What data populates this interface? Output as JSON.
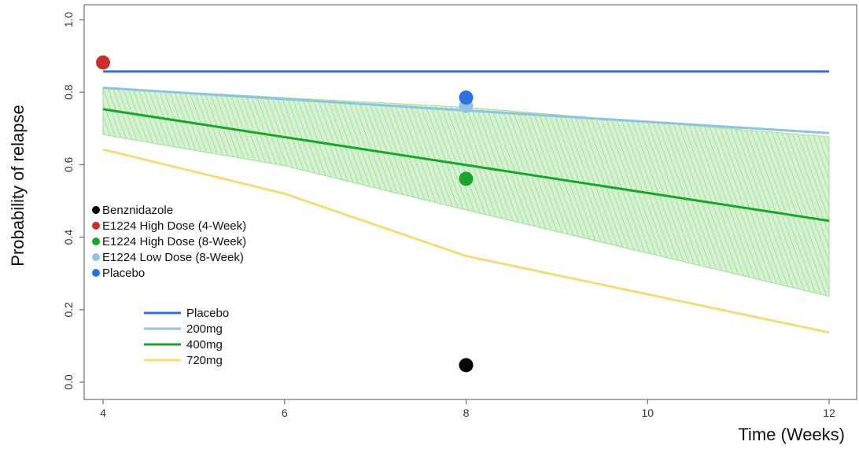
{
  "chart_data": {
    "type": "line",
    "xlabel": "Time (Weeks)",
    "ylabel": "Probability of relapse",
    "xlim": [
      4,
      12
    ],
    "ylim": [
      0,
      1
    ],
    "x_ticks": [
      "4",
      "6",
      "8",
      "10",
      "12"
    ],
    "y_ticks": [
      "0.0",
      "0.2",
      "0.4",
      "0.6",
      "0.8",
      "1.0"
    ],
    "series": [
      {
        "name": "Placebo",
        "color": "#2f6fe0",
        "x": [
          4,
          12
        ],
        "y": [
          0.857,
          0.857
        ]
      },
      {
        "name": "200mg",
        "color": "#8fc3e3",
        "x": [
          4,
          12
        ],
        "y": [
          0.812,
          0.687
        ]
      },
      {
        "name": "400mg",
        "color": "#1aa52b",
        "x": [
          4,
          12
        ],
        "y": [
          0.753,
          0.445
        ]
      },
      {
        "name": "720mg",
        "color": "#f5dc78",
        "x": [
          4,
          6,
          8,
          12
        ],
        "y": [
          0.642,
          0.52,
          0.348,
          0.137
        ]
      }
    ],
    "band": {
      "series": "400mg",
      "color": "#9ee09a",
      "x": [
        4,
        6,
        8,
        12
      ],
      "upper": [
        0.812,
        0.785,
        0.758,
        0.677
      ],
      "lower": [
        0.683,
        0.597,
        0.475,
        0.237
      ]
    },
    "points": [
      {
        "name": "Benznidazole",
        "color": "#000000",
        "x": 8,
        "y": 0.047
      },
      {
        "name": "E1224 High Dose (4-Week)",
        "color": "#c8302c",
        "x": 4,
        "y": 0.882
      },
      {
        "name": "E1224 High Dose (8-Week)",
        "color": "#1aa52b",
        "x": 8,
        "y": 0.561
      },
      {
        "name": "E1224 Low Dose (8-Week)",
        "color": "#8fc3e3",
        "x": 8,
        "y": 0.762
      },
      {
        "name": "Placebo",
        "color": "#2f6fe0",
        "x": 8,
        "y": 0.785
      }
    ],
    "points_legend": [
      "Benznidazole",
      "E1224 High Dose (4-Week)",
      "E1224 High Dose (8-Week)",
      "E1224 Low Dose (8-Week)",
      "Placebo"
    ],
    "lines_legend": [
      "Placebo",
      "200mg",
      "400mg",
      "720mg"
    ],
    "grid": false
  }
}
